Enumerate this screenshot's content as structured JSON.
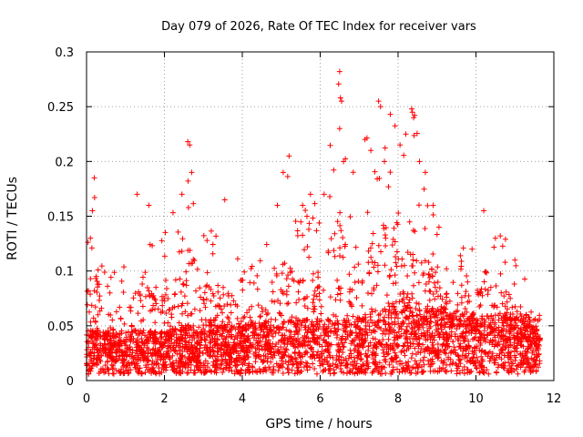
{
  "chart_data": {
    "type": "scatter",
    "title": "Day 079 of 2026, Rate Of TEC Index for receiver vars",
    "xlabel": "GPS time / hours",
    "ylabel": "ROTI / TECUs",
    "xlim": [
      0,
      12
    ],
    "ylim": [
      0,
      0.3
    ],
    "xticks": [
      0,
      2,
      4,
      6,
      8,
      10,
      12
    ],
    "yticks": [
      0,
      0.05,
      0.1,
      0.15,
      0.2,
      0.25,
      0.3
    ],
    "xtick_labels": [
      "0",
      "2",
      "4",
      "6",
      "8",
      "10",
      "12"
    ],
    "ytick_labels": [
      "0",
      "0.05",
      "0.1",
      "0.15",
      "0.2",
      "0.25",
      "0.3"
    ],
    "grid": true,
    "marker": "+",
    "color": "#ff0000",
    "series": [
      {
        "name": "ROTI",
        "x_range": [
          0,
          11.65
        ],
        "envelope": {
          "x": [
            0,
            0.2,
            0.5,
            1.0,
            1.5,
            2.0,
            2.5,
            2.65,
            3.0,
            3.5,
            4.0,
            4.5,
            5.0,
            5.5,
            6.0,
            6.5,
            7.0,
            7.5,
            8.0,
            8.4,
            8.8,
            9.2,
            9.6,
            10.0,
            10.4,
            10.8,
            11.2,
            11.65
          ],
          "ymax": [
            0.12,
            0.18,
            0.1,
            0.11,
            0.17,
            0.15,
            0.17,
            0.22,
            0.15,
            0.16,
            0.1,
            0.12,
            0.2,
            0.16,
            0.18,
            0.28,
            0.21,
            0.25,
            0.24,
            0.25,
            0.18,
            0.12,
            0.12,
            0.13,
            0.15,
            0.13,
            0.1,
            0.06
          ],
          "baseline": [
            0.02,
            0.02,
            0.02,
            0.02,
            0.02,
            0.02,
            0.025,
            0.025,
            0.025,
            0.025,
            0.025,
            0.03,
            0.03,
            0.03,
            0.03,
            0.03,
            0.03,
            0.04,
            0.05,
            0.05,
            0.04,
            0.04,
            0.035,
            0.035,
            0.035,
            0.035,
            0.03,
            0.03
          ]
        },
        "points": [
          [
            0.1,
            0.13
          ],
          [
            0.15,
            0.155
          ],
          [
            0.2,
            0.185
          ],
          [
            0.25,
            0.095
          ],
          [
            0.6,
            0.08
          ],
          [
            1.3,
            0.17
          ],
          [
            1.6,
            0.16
          ],
          [
            2.45,
            0.17
          ],
          [
            2.6,
            0.218
          ],
          [
            2.65,
            0.215
          ],
          [
            2.7,
            0.19
          ],
          [
            3.55,
            0.165
          ],
          [
            4.9,
            0.16
          ],
          [
            5.05,
            0.19
          ],
          [
            5.2,
            0.205
          ],
          [
            5.55,
            0.16
          ],
          [
            5.75,
            0.17
          ],
          [
            6.1,
            0.17
          ],
          [
            6.5,
            0.282
          ],
          [
            6.52,
            0.258
          ],
          [
            6.55,
            0.255
          ],
          [
            6.5,
            0.23
          ],
          [
            6.6,
            0.2
          ],
          [
            7.15,
            0.22
          ],
          [
            7.3,
            0.21
          ],
          [
            7.5,
            0.255
          ],
          [
            7.55,
            0.25
          ],
          [
            7.8,
            0.243
          ],
          [
            7.65,
            0.2
          ],
          [
            8.05,
            0.215
          ],
          [
            8.2,
            0.225
          ],
          [
            8.35,
            0.248
          ],
          [
            8.4,
            0.24
          ],
          [
            8.55,
            0.2
          ],
          [
            8.7,
            0.19
          ],
          [
            8.9,
            0.16
          ],
          [
            9.05,
            0.14
          ],
          [
            9.9,
            0.12
          ],
          [
            10.2,
            0.155
          ],
          [
            10.5,
            0.13
          ],
          [
            11.0,
            0.11
          ]
        ]
      }
    ]
  }
}
